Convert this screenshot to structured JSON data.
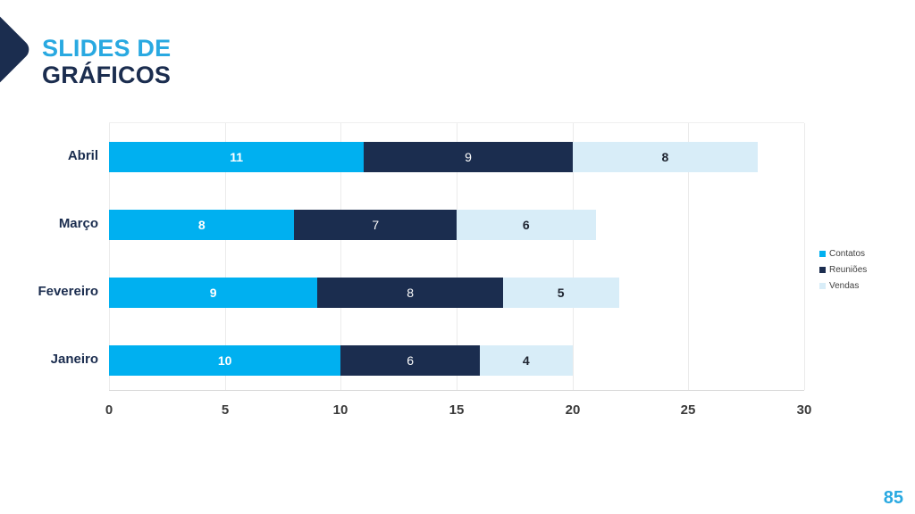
{
  "header": {
    "title_line1": "SLIDES DE",
    "title_line2": "GRÁFICOS"
  },
  "page": {
    "number": "85"
  },
  "colors": {
    "accent_blue": "#29A9E1",
    "dark_navy": "#1B2D4F",
    "series_contatos": "#00B0F0",
    "series_reunioes": "#1B2D4F",
    "series_vendas": "#D8EDF8"
  },
  "chart_data": {
    "type": "bar",
    "orientation": "horizontal",
    "stacked": true,
    "title": "",
    "xlabel": "",
    "ylabel": "",
    "categories": [
      "Abril",
      "Março",
      "Fevereiro",
      "Janeiro"
    ],
    "series": [
      {
        "name": "Contatos",
        "color": "#00B0F0",
        "values": [
          11,
          8,
          9,
          10
        ]
      },
      {
        "name": "Reuniões",
        "color": "#1B2D4F",
        "values": [
          9,
          7,
          8,
          6
        ]
      },
      {
        "name": "Vendas",
        "color": "#D8EDF8",
        "values": [
          8,
          6,
          5,
          4
        ]
      }
    ],
    "totals": [
      28,
      21,
      22,
      20
    ],
    "x_ticks": [
      0,
      5,
      10,
      15,
      20,
      25,
      30
    ],
    "xlim": [
      0,
      30
    ],
    "grid": "vertical-major",
    "legend_position": "right"
  }
}
